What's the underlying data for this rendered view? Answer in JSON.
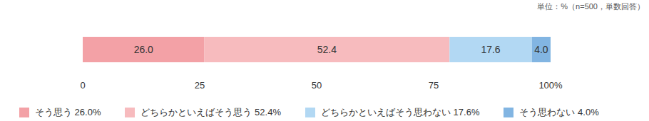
{
  "chart_data": {
    "type": "bar",
    "subtitle": "単位：%（n=500，単数回答）",
    "orientation": "horizontal",
    "stacked": true,
    "data_labels": true,
    "grid": false,
    "tick_labels": "x",
    "categories": [
      null
    ],
    "xlim": [
      0,
      100
    ],
    "xticks": [
      0,
      25,
      50,
      75,
      {
        "value": 100,
        "label": "100%"
      }
    ],
    "series": [
      {
        "name": "そう思う 26.0%",
        "color": "#f3a1a6",
        "values": [
          26
        ],
        "value_labels": [
          "26.0"
        ]
      },
      {
        "name": "どちらかといえばそう思う 52.4%",
        "color": "#f7bbbe",
        "values": [
          52.4
        ],
        "value_labels": [
          "52.4"
        ]
      },
      {
        "name": "どちらかといえばそう思わない 17.6%",
        "color": "#b2d8f3",
        "values": [
          17.6
        ],
        "value_labels": [
          "17.6"
        ]
      },
      {
        "name": "そう思わない 4.0%",
        "color": "#82b5e2",
        "values": [
          4
        ],
        "value_labels": [
          "4.0"
        ]
      }
    ]
  }
}
